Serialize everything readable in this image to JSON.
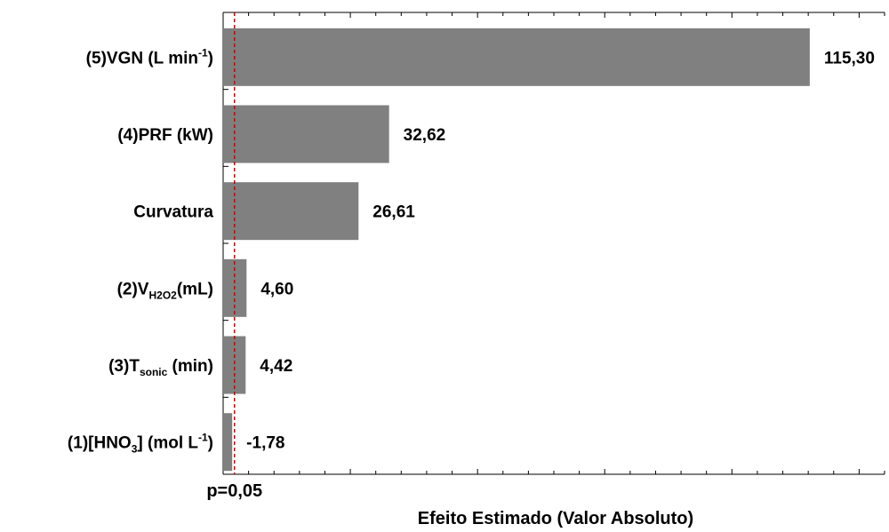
{
  "chart_data": {
    "type": "bar",
    "orientation": "horizontal",
    "title": "",
    "xlabel": "Efeito Estimado (Valor Absoluto)",
    "ylabel": "",
    "xlim": [
      0,
      130
    ],
    "grid": false,
    "bar_color": "#808080",
    "reference_line": {
      "label": "p=0,05",
      "value": 2.23,
      "color": "#cc0000",
      "style": "dashed"
    },
    "categories": [
      "(5)VGN (L min-1)",
      "(4)PRF (kW)",
      "Curvatura",
      "(2)VH2O2 (mL)",
      "(3)Tsonic (min)",
      "(1)[HNO3] (mol L-1)"
    ],
    "values": [
      115.3,
      32.62,
      26.61,
      4.6,
      4.42,
      1.78
    ],
    "data_labels": [
      "115,30",
      "32,62",
      "26,61",
      "4,60",
      "4,42",
      "-1,78"
    ],
    "category_labels": [
      {
        "main": "(5)VGN (L min",
        "sup": "-1",
        "tail": ")"
      },
      {
        "main": "(4)PRF (kW)"
      },
      {
        "main": "Curvatura"
      },
      {
        "main": "(2)V",
        "sub": "H2O2",
        "tail": "(mL)"
      },
      {
        "main": "(3)T",
        "sub": "sonic",
        "tail": " (min)"
      },
      {
        "main": "(1)[HNO",
        "sub": "3",
        "mid": "] (mol L",
        "sup": "-1",
        "tail": ")"
      }
    ]
  }
}
